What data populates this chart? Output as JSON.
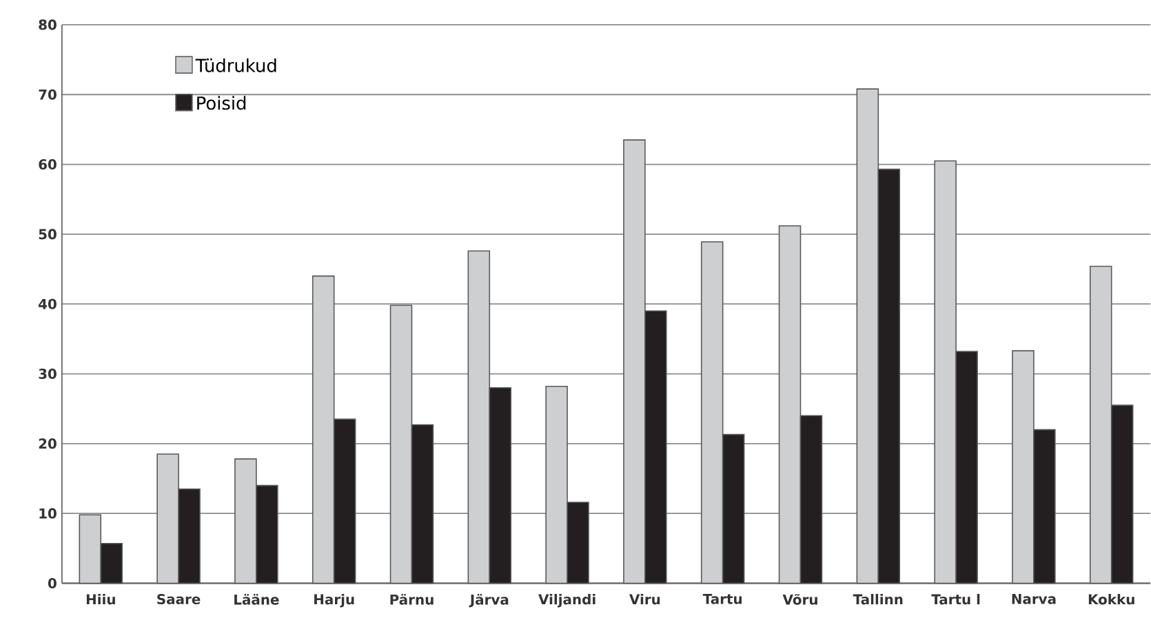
{
  "chart_data": {
    "type": "bar",
    "categories": [
      "Hiiu",
      "Saare",
      "Lääne",
      "Harju",
      "Pärnu",
      "Järva",
      "Viljandi",
      "Viru",
      "Tartu",
      "Võru",
      "Tallinn",
      "Tartu l",
      "Narva",
      "Kokku"
    ],
    "series": [
      {
        "name": "Tüdrukud",
        "color": "#cdcfd1",
        "values": [
          9.8,
          18.5,
          17.8,
          44,
          39.8,
          47.6,
          28.2,
          63.5,
          48.9,
          51.2,
          70.8,
          60.5,
          33.3,
          45.4
        ]
      },
      {
        "name": "Poisid",
        "color": "#231f20",
        "values": [
          5.7,
          13.5,
          14,
          23.5,
          22.7,
          28,
          11.6,
          39,
          21.3,
          24,
          59.3,
          33.2,
          22,
          25.5
        ]
      }
    ],
    "ylim": [
      0,
      80
    ],
    "yticks": [
      0,
      10,
      20,
      30,
      40,
      50,
      60,
      70,
      80
    ],
    "grid": "y",
    "legend": "top left"
  }
}
